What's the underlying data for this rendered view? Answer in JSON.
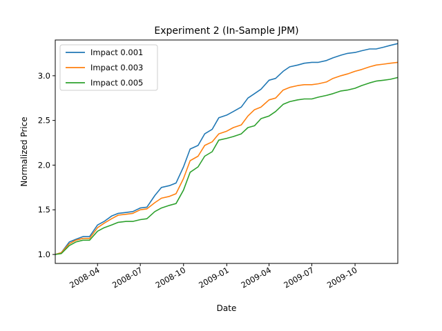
{
  "chart_data": {
    "type": "line",
    "title": "Experiment 2 (In-Sample JPM)",
    "xlabel": "Date",
    "ylabel": "Normalized Price",
    "xlim": [
      "2008-01-02",
      "2009-12-31"
    ],
    "ylim": [
      0.9,
      3.4
    ],
    "xticks": [
      "2008-04",
      "2008-07",
      "2008-10",
      "2009-01",
      "2009-04",
      "2009-07",
      "2009-10"
    ],
    "yticks": [
      "1.0",
      "1.5",
      "2.0",
      "2.5",
      "3.0"
    ],
    "grid": false,
    "legend_position": "top-left",
    "x": [
      "2008-01-02",
      "2008-01-15",
      "2008-02-01",
      "2008-02-15",
      "2008-03-01",
      "2008-03-15",
      "2008-04-01",
      "2008-04-15",
      "2008-05-01",
      "2008-05-15",
      "2008-06-01",
      "2008-06-15",
      "2008-07-01",
      "2008-07-15",
      "2008-08-01",
      "2008-08-15",
      "2008-09-01",
      "2008-09-15",
      "2008-10-01",
      "2008-10-15",
      "2008-11-01",
      "2008-11-15",
      "2008-12-01",
      "2008-12-15",
      "2009-01-01",
      "2009-01-15",
      "2009-02-01",
      "2009-02-15",
      "2009-03-01",
      "2009-03-15",
      "2009-04-01",
      "2009-04-15",
      "2009-05-01",
      "2009-05-15",
      "2009-06-01",
      "2009-06-15",
      "2009-07-01",
      "2009-07-15",
      "2009-08-01",
      "2009-08-15",
      "2009-09-01",
      "2009-09-15",
      "2009-10-01",
      "2009-10-15",
      "2009-11-01",
      "2009-11-15",
      "2009-12-01",
      "2009-12-15",
      "2009-12-31"
    ],
    "series": [
      {
        "name": "Impact 0.001",
        "color": "#1f77b4",
        "values": [
          1.0,
          1.02,
          1.14,
          1.17,
          1.2,
          1.2,
          1.33,
          1.37,
          1.43,
          1.46,
          1.47,
          1.48,
          1.52,
          1.53,
          1.66,
          1.75,
          1.77,
          1.8,
          1.98,
          2.18,
          2.22,
          2.35,
          2.4,
          2.53,
          2.56,
          2.6,
          2.65,
          2.75,
          2.8,
          2.85,
          2.95,
          2.97,
          3.05,
          3.1,
          3.12,
          3.14,
          3.15,
          3.15,
          3.17,
          3.2,
          3.23,
          3.25,
          3.26,
          3.28,
          3.3,
          3.3,
          3.32,
          3.34,
          3.36
        ]
      },
      {
        "name": "Impact 0.003",
        "color": "#ff7f0e",
        "values": [
          1.0,
          1.02,
          1.12,
          1.16,
          1.18,
          1.18,
          1.3,
          1.35,
          1.4,
          1.44,
          1.45,
          1.46,
          1.5,
          1.51,
          1.58,
          1.63,
          1.65,
          1.68,
          1.85,
          2.05,
          2.1,
          2.22,
          2.26,
          2.35,
          2.38,
          2.42,
          2.45,
          2.55,
          2.62,
          2.65,
          2.73,
          2.75,
          2.84,
          2.87,
          2.89,
          2.9,
          2.9,
          2.91,
          2.93,
          2.97,
          3.0,
          3.02,
          3.05,
          3.07,
          3.1,
          3.12,
          3.13,
          3.14,
          3.15
        ]
      },
      {
        "name": "Impact 0.005",
        "color": "#2ca02c",
        "values": [
          1.0,
          1.01,
          1.1,
          1.14,
          1.16,
          1.16,
          1.26,
          1.3,
          1.33,
          1.36,
          1.37,
          1.37,
          1.39,
          1.4,
          1.48,
          1.52,
          1.55,
          1.57,
          1.72,
          1.92,
          1.98,
          2.1,
          2.15,
          2.28,
          2.3,
          2.32,
          2.35,
          2.42,
          2.44,
          2.52,
          2.55,
          2.6,
          2.68,
          2.71,
          2.73,
          2.74,
          2.74,
          2.76,
          2.78,
          2.8,
          2.83,
          2.84,
          2.86,
          2.89,
          2.92,
          2.94,
          2.95,
          2.96,
          2.98
        ]
      }
    ]
  }
}
